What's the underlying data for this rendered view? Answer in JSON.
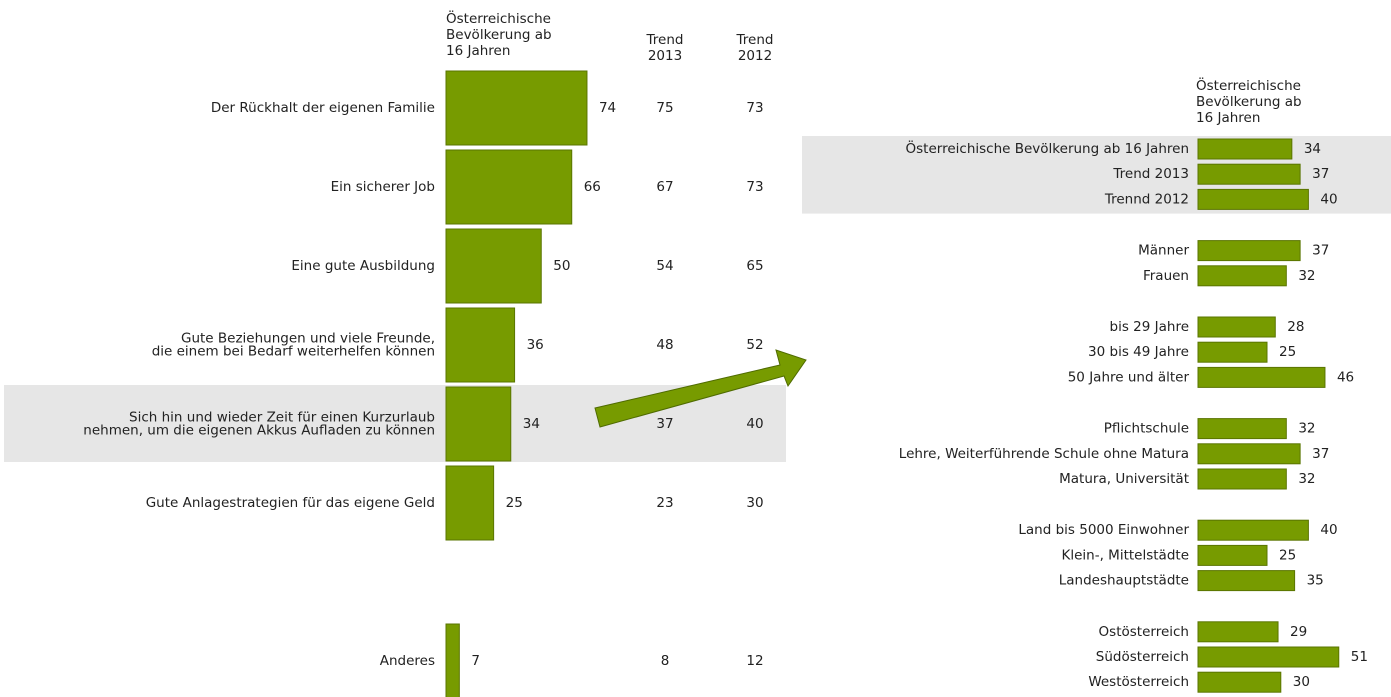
{
  "chart_data": [
    {
      "type": "bar",
      "orientation": "horizontal",
      "color": "#779b00",
      "highlight": 4,
      "categories": [
        "Der Rückhalt der eigenen Familie",
        "Ein sicherer Job",
        "Eine gute Ausbildung",
        [
          "Gute Beziehungen und viele Freunde,",
          "die einem bei Bedarf weiterhelfen können"
        ],
        [
          "Sich hin und wieder Zeit für einen Kurzurlaub",
          "nehmen, um die eigenen Akkus Aufladen zu können"
        ],
        "Gute Anlagestrategien für das eigene Geld",
        "Anderes"
      ],
      "series": [
        {
          "name": [
            "Österreichische",
            "Bevölkerung ab",
            "16 Jahren"
          ],
          "values": [
            74,
            66,
            50,
            36,
            34,
            25,
            7
          ]
        },
        {
          "name": [
            "Trend",
            "2013"
          ],
          "values": [
            75,
            67,
            54,
            48,
            37,
            23,
            8
          ]
        },
        {
          "name": [
            "Trend",
            "2012"
          ],
          "values": [
            73,
            73,
            65,
            52,
            40,
            30,
            12
          ]
        }
      ]
    },
    {
      "type": "bar",
      "orientation": "horizontal",
      "color": "#779b00",
      "highlight": 0,
      "header": [
        "Österreichische",
        "Bevölkerung ab",
        "16 Jahren"
      ],
      "groups": [
        {
          "categories": [
            "Österreichische Bevölkerung ab 16 Jahren",
            "Trend 2013",
            "Trennd 2012"
          ],
          "values": [
            34,
            37,
            40
          ]
        },
        {
          "categories": [
            "Männer",
            "Frauen"
          ],
          "values": [
            37,
            32
          ]
        },
        {
          "categories": [
            "bis 29 Jahre",
            "30 bis 49 Jahre",
            "50 Jahre und älter"
          ],
          "values": [
            28,
            25,
            46
          ]
        },
        {
          "categories": [
            "Pflichtschule",
            "Lehre, Weiterführende Schule ohne Matura",
            "Matura, Universität"
          ],
          "values": [
            32,
            37,
            32
          ]
        },
        {
          "categories": [
            "Land bis 5000 Einwohner",
            "Klein-, Mittelstädte",
            "Landeshauptstädte"
          ],
          "values": [
            40,
            25,
            35
          ]
        },
        {
          "categories": [
            "Ostösterreich",
            "Südösterreich",
            "Westösterreich"
          ],
          "values": [
            29,
            51,
            30
          ]
        }
      ]
    }
  ]
}
